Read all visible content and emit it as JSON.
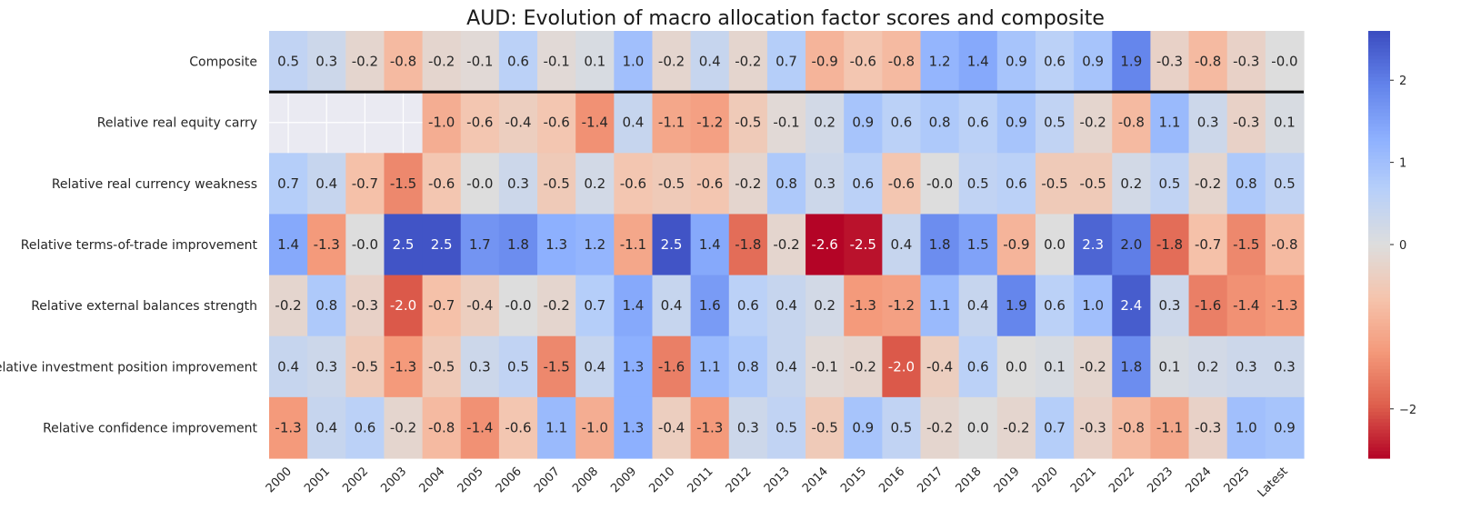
{
  "chart_data": {
    "type": "heatmap",
    "title": "AUD: Evolution of macro allocation factor scores and composite",
    "x": [
      "2000",
      "2001",
      "2002",
      "2003",
      "2004",
      "2005",
      "2006",
      "2007",
      "2008",
      "2009",
      "2010",
      "2011",
      "2012",
      "2013",
      "2014",
      "2015",
      "2016",
      "2017",
      "2018",
      "2019",
      "2020",
      "2021",
      "2022",
      "2023",
      "2024",
      "2025",
      "Latest"
    ],
    "y": [
      "Composite",
      "Relative real equity carry",
      "Relative real currency weakness",
      "Relative terms-of-trade improvement",
      "Relative external balances strength",
      "Relative investment position improvement",
      "Relative confidence improvement"
    ],
    "values": [
      [
        "0.5",
        "0.3",
        "-0.2",
        "-0.8",
        "-0.2",
        "-0.1",
        "0.6",
        "-0.1",
        "0.1",
        "1.0",
        "-0.2",
        "0.4",
        "-0.2",
        "0.7",
        "-0.9",
        "-0.6",
        "-0.8",
        "1.2",
        "1.4",
        "0.9",
        "0.6",
        "0.9",
        "1.9",
        "-0.3",
        "-0.8",
        "-0.3",
        "-0.0"
      ],
      [
        null,
        null,
        null,
        null,
        "-1.0",
        "-0.6",
        "-0.4",
        "-0.6",
        "-1.4",
        "0.4",
        "-1.1",
        "-1.2",
        "-0.5",
        "-0.1",
        "0.2",
        "0.9",
        "0.6",
        "0.8",
        "0.6",
        "0.9",
        "0.5",
        "-0.2",
        "-0.8",
        "1.1",
        "0.3",
        "-0.3",
        "0.1"
      ],
      [
        "0.7",
        "0.4",
        "-0.7",
        "-1.5",
        "-0.6",
        "-0.0",
        "0.3",
        "-0.5",
        "0.2",
        "-0.6",
        "-0.5",
        "-0.6",
        "-0.2",
        "0.8",
        "0.3",
        "0.6",
        "-0.6",
        "-0.0",
        "0.5",
        "0.6",
        "-0.5",
        "-0.5",
        "0.2",
        "0.5",
        "-0.2",
        "0.8",
        "0.5"
      ],
      [
        "1.4",
        "-1.3",
        "-0.0",
        "2.5",
        "2.5",
        "1.7",
        "1.8",
        "1.3",
        "1.2",
        "-1.1",
        "2.5",
        "1.4",
        "-1.8",
        "-0.2",
        "-2.6",
        "-2.5",
        "0.4",
        "1.8",
        "1.5",
        "-0.9",
        "0.0",
        "2.3",
        "2.0",
        "-1.8",
        "-0.7",
        "-1.5",
        "-0.8"
      ],
      [
        "-0.2",
        "0.8",
        "-0.3",
        "-2.0",
        "-0.7",
        "-0.4",
        "-0.0",
        "-0.2",
        "0.7",
        "1.4",
        "0.4",
        "1.6",
        "0.6",
        "0.4",
        "0.2",
        "-1.3",
        "-1.2",
        "1.1",
        "0.4",
        "1.9",
        "0.6",
        "1.0",
        "2.4",
        "0.3",
        "-1.6",
        "-1.4",
        "-1.3"
      ],
      [
        "0.4",
        "0.3",
        "-0.5",
        "-1.3",
        "-0.5",
        "0.3",
        "0.5",
        "-1.5",
        "0.4",
        "1.3",
        "-1.6",
        "1.1",
        "0.8",
        "0.4",
        "-0.1",
        "-0.2",
        "-2.0",
        "-0.4",
        "0.6",
        "0.0",
        "0.1",
        "-0.2",
        "1.8",
        "0.1",
        "0.2",
        "0.3",
        "0.3"
      ],
      [
        "-1.3",
        "0.4",
        "0.6",
        "-0.2",
        "-0.8",
        "-1.4",
        "-0.6",
        "1.1",
        "-1.0",
        "1.3",
        "-0.4",
        "-1.3",
        "0.3",
        "0.5",
        "-0.5",
        "0.9",
        "0.5",
        "-0.2",
        "0.0",
        "-0.2",
        "0.7",
        "-0.3",
        "-0.8",
        "-1.1",
        "-0.3",
        "1.0",
        "0.9"
      ]
    ],
    "colormap": "coolwarm_r",
    "vmin": -2.6,
    "vmax": 2.6,
    "colorbar_ticks": [
      "2",
      "1",
      "0",
      "−2"
    ],
    "missing_color": "#eaeaf2",
    "separator_after_row": 0
  }
}
